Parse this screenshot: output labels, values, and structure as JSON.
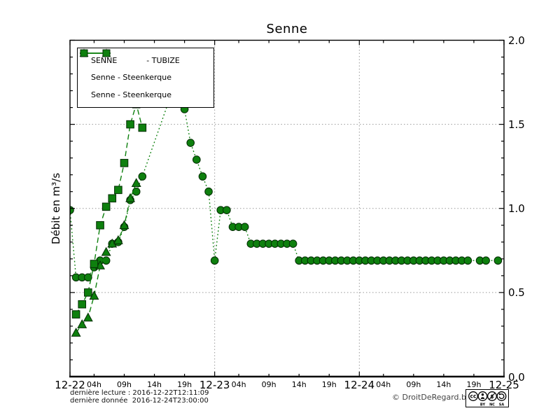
{
  "chart_data": {
    "type": "line",
    "title": "Senne",
    "ylabel": "Débit en m³/s",
    "ylim": [
      0.0,
      2.0
    ],
    "xlim_hours": [
      0,
      72
    ],
    "grid": {
      "h_values": [
        0.5,
        1.0,
        1.5
      ],
      "v_hours": [
        24,
        48
      ]
    },
    "x_axis": {
      "day_ticks": [
        {
          "h": 0,
          "label": "12-22"
        },
        {
          "h": 24,
          "label": "12-23"
        },
        {
          "h": 48,
          "label": "12-24"
        },
        {
          "h": 72,
          "label": "12-25"
        }
      ],
      "hour_ticks": [
        {
          "h": 4,
          "label": "04h"
        },
        {
          "h": 9,
          "label": "09h"
        },
        {
          "h": 14,
          "label": "14h"
        },
        {
          "h": 19,
          "label": "19h"
        },
        {
          "h": 28,
          "label": "04h"
        },
        {
          "h": 33,
          "label": "09h"
        },
        {
          "h": 38,
          "label": "14h"
        },
        {
          "h": 43,
          "label": "19h"
        },
        {
          "h": 52,
          "label": "04h"
        },
        {
          "h": 57,
          "label": "09h"
        },
        {
          "h": 62,
          "label": "14h"
        },
        {
          "h": 67,
          "label": "19h"
        }
      ]
    },
    "y_axis": {
      "major_ticks": [
        {
          "v": 0.0,
          "label": "0.0"
        },
        {
          "v": 0.5,
          "label": "0.5"
        },
        {
          "v": 1.0,
          "label": "1.0"
        },
        {
          "v": 1.5,
          "label": "1.5"
        },
        {
          "v": 2.0,
          "label": "2.0"
        }
      ],
      "minor_step": 0.1
    },
    "colors": {
      "series": "#0e800e",
      "marker_fill": "#0e800e",
      "marker_edge": "#042c04",
      "grid": "#999999",
      "axis": "#000000"
    },
    "series": [
      {
        "legend_label": "SENNE            - TUBIZE",
        "marker": "circle",
        "linestyle": "dotted",
        "points": [
          [
            0,
            0.99
          ],
          [
            1,
            0.59
          ],
          [
            2,
            0.59
          ],
          [
            3,
            0.59
          ],
          [
            4,
            0.65
          ],
          [
            5,
            0.69
          ],
          [
            6,
            0.69
          ],
          [
            7,
            0.79
          ],
          [
            8,
            0.8
          ],
          [
            9,
            0.89
          ],
          [
            10,
            1.05
          ],
          [
            11,
            1.1
          ],
          [
            12,
            1.19
          ],
          [
            17,
            1.7
          ],
          [
            18,
            1.66
          ],
          [
            19,
            1.59
          ],
          [
            20,
            1.39
          ],
          [
            21,
            1.29
          ],
          [
            22,
            1.19
          ],
          [
            23,
            1.1
          ],
          [
            24,
            0.69
          ],
          [
            25,
            0.99
          ],
          [
            26,
            0.99
          ],
          [
            27,
            0.89
          ],
          [
            28,
            0.89
          ],
          [
            29,
            0.89
          ],
          [
            30,
            0.79
          ],
          [
            31,
            0.79
          ],
          [
            32,
            0.79
          ],
          [
            33,
            0.79
          ],
          [
            34,
            0.79
          ],
          [
            35,
            0.79
          ],
          [
            36,
            0.79
          ],
          [
            37,
            0.79
          ],
          [
            38,
            0.69
          ],
          [
            39,
            0.69
          ],
          [
            40,
            0.69
          ],
          [
            41,
            0.69
          ],
          [
            42,
            0.69
          ],
          [
            43,
            0.69
          ],
          [
            44,
            0.69
          ],
          [
            45,
            0.69
          ],
          [
            46,
            0.69
          ],
          [
            47,
            0.69
          ],
          [
            48,
            0.69
          ],
          [
            49,
            0.69
          ],
          [
            50,
            0.69
          ],
          [
            51,
            0.69
          ],
          [
            52,
            0.69
          ],
          [
            53,
            0.69
          ],
          [
            54,
            0.69
          ],
          [
            55,
            0.69
          ],
          [
            56,
            0.69
          ],
          [
            57,
            0.69
          ],
          [
            58,
            0.69
          ],
          [
            59,
            0.69
          ],
          [
            60,
            0.69
          ],
          [
            61,
            0.69
          ],
          [
            62,
            0.69
          ],
          [
            63,
            0.69
          ],
          [
            64,
            0.69
          ],
          [
            65,
            0.69
          ],
          [
            66,
            0.69
          ],
          [
            68,
            0.69
          ],
          [
            69,
            0.69
          ],
          [
            71,
            0.69
          ]
        ]
      },
      {
        "legend_label": "Senne - Steenkerque",
        "marker": "triangle",
        "linestyle": "dashed",
        "points": [
          [
            1,
            0.26
          ],
          [
            2,
            0.31
          ],
          [
            3,
            0.35
          ],
          [
            4,
            0.48
          ],
          [
            5,
            0.66
          ],
          [
            6,
            0.74
          ],
          [
            7,
            0.79
          ],
          [
            8,
            0.81
          ],
          [
            9,
            0.9
          ],
          [
            10,
            1.06
          ],
          [
            11,
            1.15
          ]
        ]
      },
      {
        "legend_label": "Senne - Steenkerque",
        "marker": "square",
        "linestyle": "dashed",
        "points": [
          [
            1,
            0.37
          ],
          [
            2,
            0.43
          ],
          [
            3,
            0.5
          ],
          [
            4,
            0.67
          ],
          [
            5,
            0.9
          ],
          [
            6,
            1.01
          ],
          [
            7,
            1.06
          ],
          [
            8,
            1.11
          ],
          [
            9,
            1.27
          ],
          [
            10,
            1.5
          ],
          [
            11,
            1.62
          ],
          [
            12,
            1.48
          ]
        ]
      }
    ]
  },
  "footer": {
    "last_reading": "dernière lecture : 2016-12-22T12:11:09",
    "last_data": "dernière donnée  2016-12-24T23:00:00",
    "copyright": "© DroitDeRegard.be",
    "cc_labels": [
      "BY",
      "NC",
      "SA"
    ]
  }
}
